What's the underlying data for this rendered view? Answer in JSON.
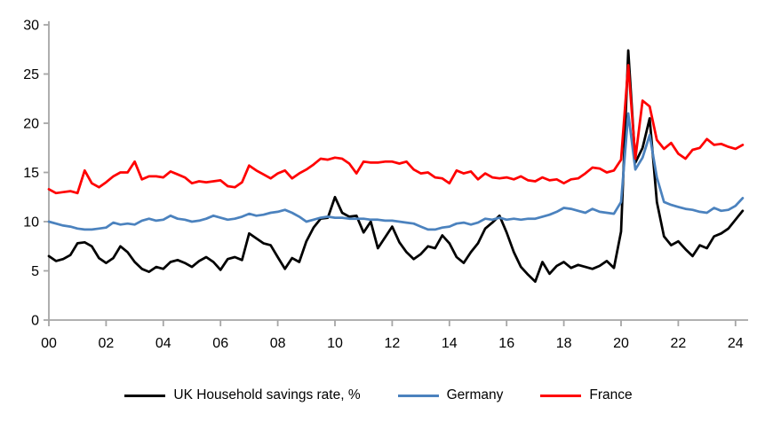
{
  "chart_data": {
    "type": "line",
    "title": "",
    "xlabel": "",
    "ylabel": "",
    "ylim": [
      0,
      30
    ],
    "y_ticks": [
      0,
      5,
      10,
      15,
      20,
      25,
      30
    ],
    "x_tick_labels": [
      "00",
      "02",
      "04",
      "06",
      "08",
      "10",
      "12",
      "14",
      "16",
      "18",
      "20",
      "22",
      "24"
    ],
    "x_tick_years": [
      0,
      2,
      4,
      6,
      8,
      10,
      12,
      14,
      16,
      18,
      20,
      22,
      24
    ],
    "x_start_label": "2000 Q1",
    "x_step_years": 0.25,
    "grid": false,
    "legend_position": "bottom",
    "axis_color": "#a6a6a6",
    "series": [
      {
        "name": "UK Household savings rate, %",
        "color": "#000000",
        "values": [
          6.5,
          6.0,
          6.2,
          6.6,
          7.8,
          7.9,
          7.5,
          6.3,
          5.8,
          6.3,
          7.5,
          6.9,
          5.9,
          5.2,
          4.9,
          5.4,
          5.2,
          5.9,
          6.1,
          5.8,
          5.4,
          6.0,
          6.4,
          5.9,
          5.1,
          6.2,
          6.4,
          6.1,
          8.8,
          8.3,
          7.8,
          7.6,
          6.4,
          5.2,
          6.3,
          5.9,
          8.0,
          9.4,
          10.3,
          10.4,
          12.5,
          10.9,
          10.5,
          10.6,
          8.9,
          10.0,
          7.3,
          8.4,
          9.5,
          7.9,
          6.9,
          6.2,
          6.7,
          7.5,
          7.3,
          8.6,
          7.8,
          6.4,
          5.8,
          6.9,
          7.8,
          9.3,
          9.9,
          10.6,
          8.9,
          6.9,
          5.4,
          4.6,
          3.9,
          5.9,
          4.7,
          5.5,
          5.9,
          5.3,
          5.6,
          5.4,
          5.2,
          5.5,
          6.0,
          5.3,
          9.0,
          27.4,
          16.0,
          17.5,
          20.5,
          12.0,
          8.5,
          7.6,
          8.0,
          7.2,
          6.5,
          7.6,
          7.3,
          8.5,
          8.8,
          9.3,
          10.2,
          11.1
        ]
      },
      {
        "name": "Germany",
        "color": "#4b82be",
        "values": [
          10.0,
          9.8,
          9.6,
          9.5,
          9.3,
          9.2,
          9.2,
          9.3,
          9.4,
          9.9,
          9.7,
          9.8,
          9.7,
          10.1,
          10.3,
          10.1,
          10.2,
          10.6,
          10.3,
          10.2,
          10.0,
          10.1,
          10.3,
          10.6,
          10.4,
          10.2,
          10.3,
          10.5,
          10.8,
          10.6,
          10.7,
          10.9,
          11.0,
          11.2,
          10.9,
          10.5,
          10.0,
          10.2,
          10.4,
          10.5,
          10.4,
          10.4,
          10.3,
          10.3,
          10.3,
          10.2,
          10.2,
          10.1,
          10.1,
          10.0,
          9.9,
          9.8,
          9.5,
          9.2,
          9.2,
          9.4,
          9.5,
          9.8,
          9.9,
          9.7,
          9.9,
          10.3,
          10.2,
          10.4,
          10.2,
          10.3,
          10.2,
          10.3,
          10.3,
          10.5,
          10.7,
          11.0,
          11.4,
          11.3,
          11.1,
          10.9,
          11.3,
          11.0,
          10.9,
          10.8,
          12.0,
          21.0,
          15.3,
          16.5,
          18.8,
          14.5,
          12.0,
          11.7,
          11.5,
          11.3,
          11.2,
          11.0,
          10.9,
          11.4,
          11.1,
          11.2,
          11.6,
          12.4
        ]
      },
      {
        "name": "France",
        "color": "#ff0000",
        "values": [
          13.3,
          12.9,
          13.0,
          13.1,
          12.9,
          15.2,
          13.9,
          13.5,
          14.0,
          14.6,
          15.0,
          15.0,
          16.1,
          14.3,
          14.6,
          14.6,
          14.5,
          15.1,
          14.8,
          14.5,
          13.9,
          14.1,
          14.0,
          14.1,
          14.2,
          13.6,
          13.5,
          14.0,
          15.7,
          15.2,
          14.8,
          14.4,
          14.9,
          15.2,
          14.4,
          14.9,
          15.3,
          15.8,
          16.4,
          16.3,
          16.5,
          16.4,
          15.9,
          14.9,
          16.1,
          16.0,
          16.0,
          16.1,
          16.1,
          15.9,
          16.1,
          15.3,
          14.9,
          15.0,
          14.5,
          14.4,
          13.9,
          15.2,
          14.9,
          15.1,
          14.3,
          14.9,
          14.5,
          14.4,
          14.5,
          14.3,
          14.6,
          14.2,
          14.1,
          14.5,
          14.2,
          14.3,
          13.9,
          14.3,
          14.4,
          14.9,
          15.5,
          15.4,
          15.0,
          15.2,
          16.3,
          25.9,
          16.4,
          22.3,
          21.7,
          18.3,
          17.4,
          18.0,
          16.9,
          16.4,
          17.3,
          17.5,
          18.4,
          17.8,
          17.9,
          17.6,
          17.4,
          17.8
        ]
      }
    ]
  }
}
